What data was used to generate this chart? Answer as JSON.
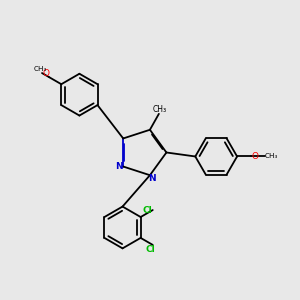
{
  "bg_color": "#e8e8e8",
  "bond_color": "#000000",
  "n_color": "#0000cc",
  "o_color": "#ff0000",
  "cl_color": "#00bb00",
  "lw": 1.3,
  "dbo": 0.018,
  "xlim": [
    0,
    6
  ],
  "ylim": [
    0,
    6
  ],
  "figsize": [
    3.0,
    3.0
  ],
  "dpi": 100
}
